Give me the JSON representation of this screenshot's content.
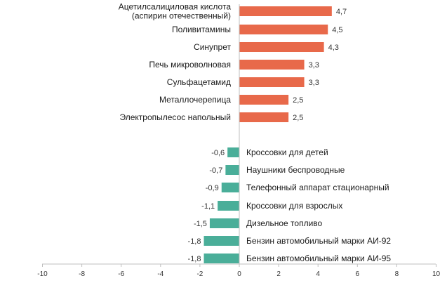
{
  "chart_data": {
    "type": "bar",
    "orientation": "horizontal",
    "title": "",
    "xlabel": "",
    "ylabel": "",
    "xlim": [
      -10,
      10
    ],
    "x_ticks": [
      "-10",
      "-8",
      "-6",
      "-4",
      "-2",
      "0",
      "2",
      "4",
      "6",
      "8",
      "10"
    ],
    "grid": false,
    "colors": {
      "positive": "#e8694a",
      "negative": "#4aae99",
      "axis": "#bfbfbf"
    },
    "bars": [
      {
        "label_lines": [
          "Ацетилсалициловая кислота",
          "(аспирин отечественный)"
        ],
        "value": 4.7,
        "value_label": "4,7"
      },
      {
        "label_lines": [
          "Поливитамины"
        ],
        "value": 4.5,
        "value_label": "4,5"
      },
      {
        "label_lines": [
          "Синупрет"
        ],
        "value": 4.3,
        "value_label": "4,3"
      },
      {
        "label_lines": [
          "Печь микроволновая"
        ],
        "value": 3.3,
        "value_label": "3,3"
      },
      {
        "label_lines": [
          "Сульфацетамид"
        ],
        "value": 3.3,
        "value_label": "3,3"
      },
      {
        "label_lines": [
          "Металлочерепица"
        ],
        "value": 2.5,
        "value_label": "2,5"
      },
      {
        "label_lines": [
          "Электропылесос напольный"
        ],
        "value": 2.5,
        "value_label": "2,5"
      },
      {
        "label_lines": [
          "Кроссовки для детей"
        ],
        "value": -0.6,
        "value_label": "-0,6"
      },
      {
        "label_lines": [
          "Наушники беспроводные"
        ],
        "value": -0.7,
        "value_label": "-0,7"
      },
      {
        "label_lines": [
          "Телефонный аппарат стационарный"
        ],
        "value": -0.9,
        "value_label": "-0,9"
      },
      {
        "label_lines": [
          "Кроссовки для взрослых"
        ],
        "value": -1.1,
        "value_label": "-1,1"
      },
      {
        "label_lines": [
          "Дизельное топливо"
        ],
        "value": -1.5,
        "value_label": "-1,5"
      },
      {
        "label_lines": [
          "Бензин автомобильный марки АИ-92"
        ],
        "value": -1.8,
        "value_label": "-1,8"
      },
      {
        "label_lines": [
          "Бензин автомобильный марки АИ-95"
        ],
        "value": -1.8,
        "value_label": "-1,8"
      }
    ]
  }
}
